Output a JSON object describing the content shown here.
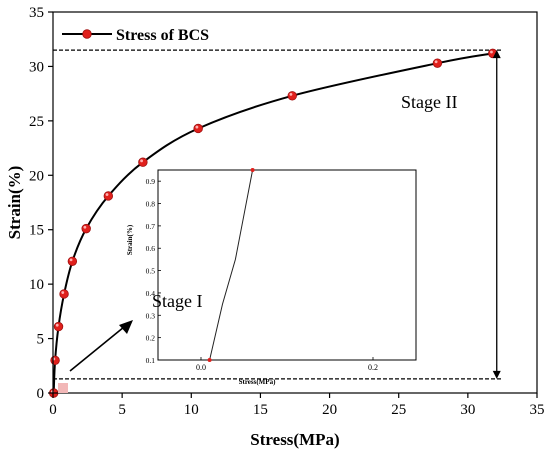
{
  "chart_data": {
    "type": "line",
    "xlabel": "Stress(MPa)",
    "ylabel": "Strain(%)",
    "xlim": [
      0,
      35
    ],
    "ylim": [
      0,
      35
    ],
    "xticks": [
      0,
      5,
      10,
      15,
      20,
      25,
      30,
      35
    ],
    "yticks": [
      0,
      5,
      10,
      15,
      20,
      25,
      30,
      35
    ],
    "grid": false,
    "legend": {
      "position": "top-left"
    },
    "series": [
      {
        "name": "Stress of BCS",
        "color": "#e0201c",
        "line_color": "#000000",
        "points": [
          [
            0.05,
            0.0
          ],
          [
            0.15,
            3.0
          ],
          [
            0.4,
            6.1
          ],
          [
            0.8,
            9.1
          ],
          [
            1.4,
            12.1
          ],
          [
            2.4,
            15.1
          ],
          [
            4.0,
            18.1
          ],
          [
            6.5,
            21.2
          ],
          [
            10.5,
            24.3
          ],
          [
            17.3,
            27.3
          ],
          [
            27.8,
            30.3
          ],
          [
            31.8,
            31.2
          ]
        ]
      }
    ],
    "annotations": {
      "stage1": "Stage I",
      "stage2": "Stage II",
      "ref_line_low": 1.3,
      "ref_line_high": 31.5
    },
    "inset": {
      "xlabel": "Stress(MPa)",
      "ylabel": "Strain(%)",
      "xlim": [
        -0.05,
        0.25
      ],
      "ylim": [
        0.1,
        0.95
      ],
      "xticks": [
        0.0,
        0.2
      ],
      "xtick_labels": [
        "0.0",
        "0.2"
      ],
      "yticks": [
        0.1,
        0.2,
        0.3,
        0.4,
        0.5,
        0.6,
        0.7,
        0.8,
        0.9
      ],
      "ytick_labels": [
        "0.1",
        "0.2",
        "0.3",
        "0.4",
        "0.5",
        "0.6",
        "0.7",
        "0.8",
        "0.9"
      ],
      "points": [
        [
          0.01,
          0.1
        ],
        [
          0.025,
          0.35
        ],
        [
          0.04,
          0.55
        ],
        [
          0.05,
          0.75
        ],
        [
          0.06,
          0.95
        ]
      ]
    }
  }
}
